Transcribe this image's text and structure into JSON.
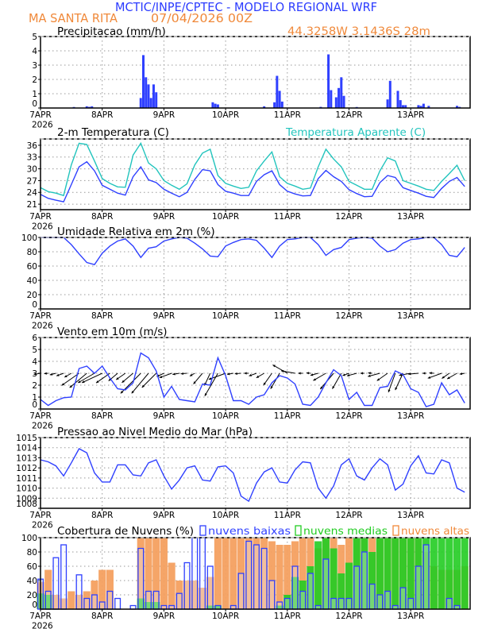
{
  "header": {
    "title": "MCTIC/INPE/CPTEC - MODELO REGIONAL WRF",
    "location": "MA SANTA RITA",
    "run": "07/04/2026 00Z",
    "coords": "44.3258W 3.1436S 28m"
  },
  "colors": {
    "title": "#2b3bff",
    "info": "#f0893a",
    "series_blue": "#2f40ff",
    "apparent": "#22c4bd",
    "low_clouds": "#2f40ff",
    "mid_clouds": "#22cc22",
    "high_clouds": "#f4a060"
  },
  "chart_data": {
    "type": "multi-panel meteogram",
    "x_ticks": [
      "7APR",
      "8APR",
      "9APR",
      "10APR",
      "11APR",
      "12APR",
      "13APR"
    ],
    "x_year": "2026",
    "time": [
      "07/00",
      "07/03",
      "07/06",
      "07/09",
      "07/12",
      "07/15",
      "07/18",
      "07/21",
      "08/00",
      "08/03",
      "08/06",
      "08/09",
      "08/12",
      "08/15",
      "08/18",
      "08/21",
      "09/00",
      "09/03",
      "09/06",
      "09/09",
      "09/12",
      "09/15",
      "09/18",
      "09/21",
      "10/00",
      "10/03",
      "10/06",
      "10/09",
      "10/12",
      "10/15",
      "10/18",
      "10/21",
      "11/00",
      "11/03",
      "11/06",
      "11/09",
      "11/12",
      "11/15",
      "11/18",
      "11/21",
      "12/00",
      "12/03",
      "12/06",
      "12/09",
      "12/12",
      "12/15",
      "12/18",
      "12/21",
      "13/00",
      "13/03",
      "13/06",
      "13/09",
      "13/12",
      "13/15",
      "13/18",
      "13/21"
    ],
    "panels": [
      {
        "id": "precip",
        "type": "bar",
        "title": "Precipitacao (mm/h)",
        "ylim": [
          0,
          5
        ],
        "yticks": [
          0,
          1,
          2,
          3,
          4,
          5
        ],
        "grid": true,
        "points": [
          [
            "07/13",
            0.07
          ],
          [
            "07/18",
            0.12
          ],
          [
            "07/19",
            0.08
          ],
          [
            "07/20",
            0.12
          ],
          [
            "08/15",
            0.7
          ],
          [
            "08/16",
            3.7
          ],
          [
            "08/17",
            2.15
          ],
          [
            "08/18",
            1.65
          ],
          [
            "08/19",
            0.7
          ],
          [
            "08/20",
            1.65
          ],
          [
            "08/21",
            1.1
          ],
          [
            "09/19",
            0.4
          ],
          [
            "09/20",
            0.3
          ],
          [
            "09/21",
            0.25
          ],
          [
            "10/15",
            0.12
          ],
          [
            "10/19",
            0.4
          ],
          [
            "10/20",
            2.25
          ],
          [
            "10/21",
            1.2
          ],
          [
            "10/22",
            0.45
          ],
          [
            "11/13",
            0.08
          ],
          [
            "11/16",
            3.75
          ],
          [
            "11/17",
            1.25
          ],
          [
            "11/19",
            0.75
          ],
          [
            "11/20",
            1.4
          ],
          [
            "11/21",
            2.15
          ],
          [
            "11/22",
            0.85
          ],
          [
            "12/03",
            0.07
          ],
          [
            "12/15",
            0.6
          ],
          [
            "12/16",
            1.9
          ],
          [
            "12/19",
            1.2
          ],
          [
            "12/20",
            0.55
          ],
          [
            "12/21",
            0.2
          ],
          [
            "12/22",
            0.2
          ],
          [
            "13/03",
            0.2
          ],
          [
            "13/04",
            0.15
          ],
          [
            "13/05",
            0.3
          ],
          [
            "13/07",
            0.15
          ],
          [
            "13/18",
            0.15
          ],
          [
            "13/19",
            0.08
          ]
        ]
      },
      {
        "id": "temp",
        "type": "line",
        "title": "2-m Temperatura (C)",
        "ylim": [
          19.6,
          37.6
        ],
        "yticks": [
          21,
          24,
          27,
          30,
          33,
          36
        ],
        "grid": true,
        "series": [
          {
            "name": "2-m Temperatura (C)",
            "color": "#2f40ff",
            "values": [
              23.5,
              22.5,
              22,
              21.6,
              26,
              30.5,
              31.8,
              29.5,
              25.8,
              24.8,
              23.8,
              23.3,
              28,
              30.5,
              27.2,
              26.5,
              24.8,
              23.8,
              22.9,
              24,
              27.3,
              29.8,
              29.5,
              26,
              24.3,
              23.8,
              23.2,
              23.2,
              26.8,
              28.5,
              29.5,
              26,
              24.3,
              23.6,
              23.1,
              23.2,
              27.5,
              29.6,
              28,
              26.8,
              24.7,
              23.7,
              22.9,
              23,
              26.5,
              28.3,
              27.8,
              25.2,
              24.5,
              23.8,
              23,
              22.7,
              25,
              26.8,
              27.8,
              25.5
            ]
          },
          {
            "name": "Temperatura Aparente (C)",
            "color": "#22c4bd",
            "values": [
              25.2,
              24.2,
              23.8,
              23.2,
              31,
              36.5,
              36.2,
              32,
              27.5,
              26.3,
              25.4,
              25.3,
              33.5,
              36.5,
              31.5,
              30,
              27,
              25.8,
              24.8,
              26.2,
              31,
              34,
              35,
              28.3,
              26.3,
              25.6,
              25,
              25.3,
              29.5,
              32,
              34.3,
              28,
              26.3,
              25.6,
              24.8,
              25.1,
              30.5,
              35,
              32.5,
              30.5,
              26.8,
              25.8,
              24.8,
              24.8,
              29.5,
              32.8,
              32,
              27,
              26.3,
              25.6,
              24.8,
              24.5,
              26.8,
              28.8,
              30.9,
              27
            ]
          }
        ]
      },
      {
        "id": "rh",
        "type": "line",
        "title": "Umidade Relativa em 2m (%)",
        "ylim": [
          0,
          100
        ],
        "yticks": [
          0,
          20,
          40,
          60,
          80,
          100
        ],
        "grid": true,
        "series": [
          {
            "color": "#2f40ff",
            "values": [
              100,
              100,
              100,
              100,
              90,
              77,
              65,
              62,
              78,
              88,
              95,
              98,
              88,
              72,
              85,
              87,
              95,
              98,
              100,
              99,
              92,
              84,
              74,
              73,
              88,
              93,
              97,
              98,
              96,
              85,
              72,
              88,
              97,
              98,
              100,
              100,
              90,
              75,
              83,
              86,
              97,
              99,
              100,
              99,
              88,
              80,
              83,
              92,
              97,
              98,
              100,
              100,
              90,
              75,
              73,
              86
            ]
          }
        ]
      },
      {
        "id": "wind",
        "type": "line",
        "title": "Vento em 10m (m/s)",
        "ylim": [
          0,
          6
        ],
        "yticks": [
          0,
          1,
          2,
          3,
          4,
          5,
          6
        ],
        "grid": true,
        "series": [
          {
            "color": "#2f40ff",
            "values": [
              0.8,
              0.3,
              0.7,
              0.95,
              1.0,
              3.4,
              3.6,
              3.0,
              3.6,
              2.6,
              1.7,
              1.6,
              2.2,
              4.7,
              4.3,
              3.2,
              1.0,
              1.9,
              0.8,
              0.7,
              0.6,
              2.1,
              2.0,
              4.3,
              2.8,
              0.7,
              0.7,
              0.4,
              1.0,
              1.2,
              2.2,
              2.8,
              2.6,
              2.1,
              0.4,
              0.3,
              1.0,
              2.2,
              3.3,
              2.8,
              0.8,
              1.4,
              0.3,
              0.3,
              1.8,
              1.9,
              3.2,
              2.9,
              1.7,
              1.4,
              0.2,
              0.4,
              2.2,
              1.2,
              1.6,
              0.5
            ]
          }
        ],
        "wind_direction_deg": [
          80,
          85,
          75,
          70,
          60,
          55,
          50,
          60,
          65,
          55,
          50,
          55,
          50,
          45,
          40,
          45,
          65,
          70,
          80,
          85,
          60,
          40,
          25,
          30,
          70,
          80,
          85,
          90,
          70,
          60,
          35,
          30,
          120,
          100,
          90,
          95,
          75,
          60,
          40,
          30,
          70,
          75,
          90,
          95,
          75,
          55,
          20,
          25,
          80,
          85,
          90,
          95,
          70,
          55,
          60,
          80
        ]
      },
      {
        "id": "pressure",
        "type": "line",
        "title": "Pressao ao Nivel Medio do Mar (hPa)",
        "ylim": [
          1008,
          1015
        ],
        "yticks": [
          1008,
          1009,
          1010,
          1011,
          1012,
          1013,
          1014,
          1015
        ],
        "grid": true,
        "series": [
          {
            "color": "#2f40ff",
            "values": [
              1012.8,
              1012.6,
              1012.2,
              1011.2,
              1012.5,
              1013.9,
              1013.5,
              1011.5,
              1010.6,
              1010.6,
              1012.3,
              1012.3,
              1011.3,
              1011.2,
              1012.5,
              1012.8,
              1011.2,
              1009.9,
              1010.8,
              1012,
              1012.2,
              1010.8,
              1010.7,
              1012.1,
              1012.2,
              1011.5,
              1009.2,
              1008.7,
              1010.5,
              1011.6,
              1012,
              1010.6,
              1010.5,
              1011.8,
              1012.6,
              1012.5,
              1010,
              1009,
              1010.2,
              1012.3,
              1012.9,
              1011.2,
              1010.8,
              1012,
              1012.9,
              1012.3,
              1009.8,
              1010.4,
              1012.2,
              1013.2,
              1011.5,
              1011.4,
              1012.8,
              1012.5,
              1010,
              1009.6
            ]
          }
        ]
      },
      {
        "id": "clouds",
        "type": "bar",
        "title": "Cobertura de Nuvens (%)",
        "ylim": [
          0,
          100
        ],
        "yticks": [
          0,
          20,
          40,
          60,
          80,
          100
        ],
        "grid": true,
        "legend": "top-right",
        "series": [
          {
            "name": "nuvens altas",
            "color": "#f4a060",
            "values": [
              38,
              55,
              20,
              15,
              25,
              20,
              25,
              40,
              55,
              55,
              0,
              0,
              0,
              100,
              100,
              100,
              100,
              65,
              40,
              40,
              40,
              30,
              45,
              100,
              100,
              100,
              100,
              100,
              100,
              100,
              95,
              90,
              90,
              95,
              100,
              100,
              85,
              100,
              100,
              90,
              100,
              100,
              100,
              100,
              100,
              100,
              100,
              100,
              100,
              100,
              80,
              60,
              55,
              55,
              55,
              60
            ]
          },
          {
            "name": "nuvens medias",
            "color": "#22cc22",
            "values": [
              22,
              20,
              0,
              0,
              0,
              0,
              0,
              0,
              0,
              0,
              0,
              0,
              0,
              15,
              10,
              10,
              0,
              0,
              0,
              0,
              0,
              0,
              5,
              5,
              0,
              0,
              0,
              0,
              0,
              0,
              0,
              5,
              20,
              45,
              40,
              60,
              95,
              100,
              85,
              50,
              65,
              100,
              100,
              80,
              100,
              100,
              100,
              100,
              100,
              100,
              100,
              100,
              100,
              100,
              100,
              100
            ]
          },
          {
            "name": "nuvens baixas",
            "color": "#2f40ff",
            "values": [
              42,
              25,
              72,
              90,
              0,
              48,
              15,
              20,
              10,
              25,
              15,
              0,
              5,
              85,
              25,
              25,
              5,
              5,
              22,
              65,
              100,
              100,
              60,
              5,
              0,
              5,
              50,
              95,
              90,
              85,
              40,
              10,
              15,
              60,
              25,
              50,
              5,
              70,
              15,
              15,
              15,
              60,
              80,
              35,
              20,
              25,
              5,
              30,
              15,
              60,
              90,
              0,
              0,
              15,
              5,
              0
            ]
          }
        ]
      }
    ]
  }
}
